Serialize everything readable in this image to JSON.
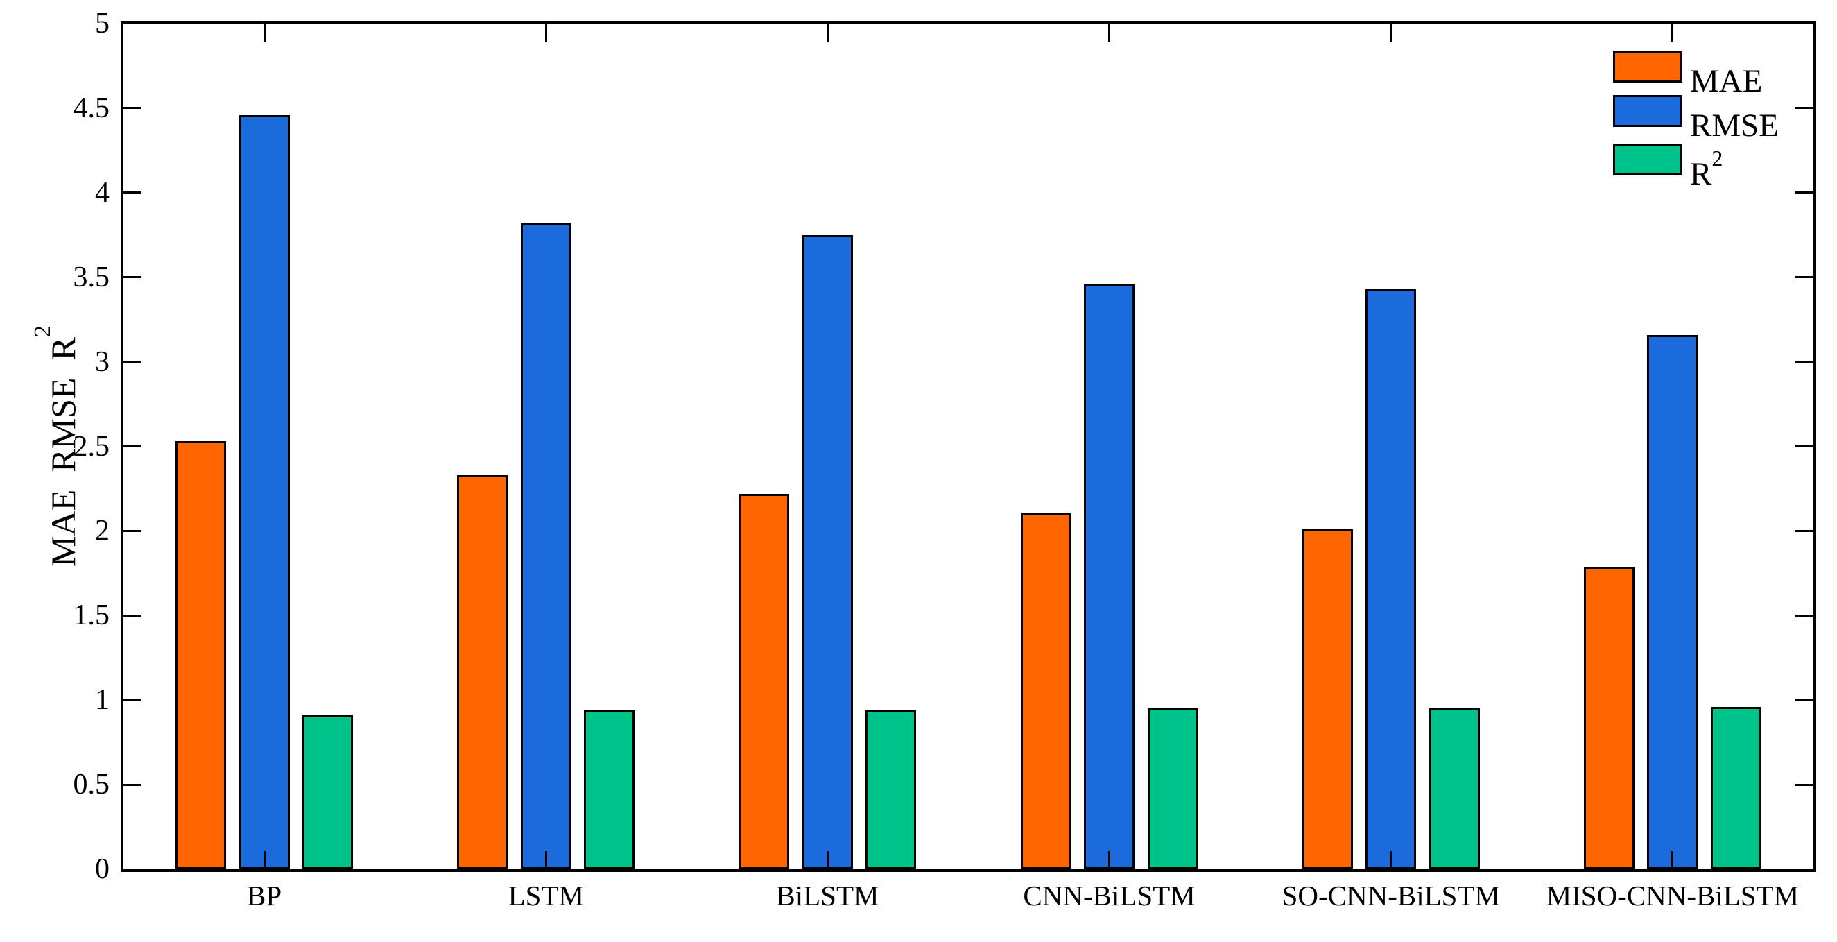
{
  "figure": {
    "background": "#ffffff",
    "axis_color": "#000000",
    "bar_edge_color": "#000000"
  },
  "chart_data": {
    "type": "bar",
    "title": "",
    "categories": [
      "BP",
      "LSTM",
      "BiLSTM",
      "CNN-BiLSTM",
      "SO-CNN-BiLSTM",
      "MISO-CNN-BiLSTM"
    ],
    "series": [
      {
        "name": "MAE",
        "name_sup": "",
        "color": "#FF6600",
        "values": [
          2.53,
          2.33,
          2.22,
          2.11,
          2.01,
          1.79
        ]
      },
      {
        "name": "RMSE",
        "name_sup": "",
        "color": "#1C6BDD",
        "values": [
          4.46,
          3.82,
          3.75,
          3.46,
          3.43,
          3.16
        ]
      },
      {
        "name": "R",
        "name_sup": "2",
        "color": "#00C389",
        "values": [
          0.91,
          0.94,
          0.94,
          0.95,
          0.95,
          0.96
        ]
      }
    ],
    "xlabel": "",
    "ylabel_text": "MAE  RMSE  R",
    "ylabel_sup": "2",
    "ylim": [
      0,
      5
    ],
    "ytick_step": 0.5,
    "yticks": [
      {
        "v": 0,
        "label": "0"
      },
      {
        "v": 0.5,
        "label": "0.5"
      },
      {
        "v": 1,
        "label": "1"
      },
      {
        "v": 1.5,
        "label": "1.5"
      },
      {
        "v": 2,
        "label": "2"
      },
      {
        "v": 2.5,
        "label": "2.5"
      },
      {
        "v": 3,
        "label": "3"
      },
      {
        "v": 3.5,
        "label": "3.5"
      },
      {
        "v": 4,
        "label": "4"
      },
      {
        "v": 4.5,
        "label": "4.5"
      },
      {
        "v": 5,
        "label": "5"
      }
    ],
    "grid": false,
    "legend": {
      "position": "top-right",
      "frame": false
    }
  }
}
